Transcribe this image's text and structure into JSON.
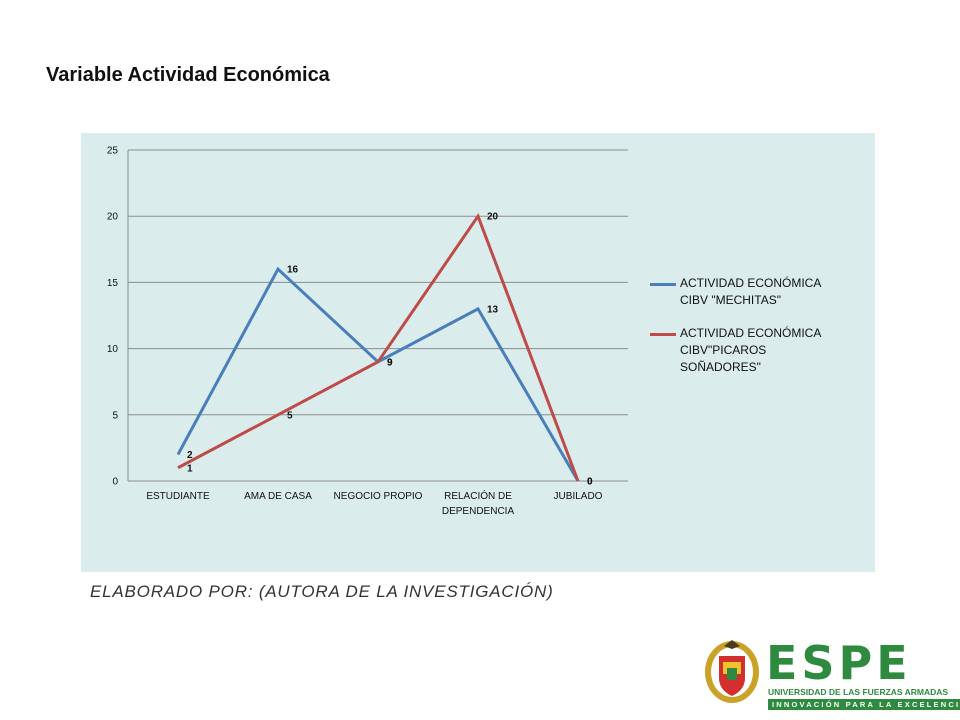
{
  "slide": {
    "title": "Variable Actividad Económica",
    "caption": "ELABORADO POR: (AUTORA DE LA INVESTIGACIÓN)"
  },
  "logo": {
    "word": "ESPE",
    "subtitle": "UNIVERSIDAD DE LAS FUERZAS ARMADAS",
    "tagline": "INNOVACIÓN PARA LA EXCELENCIA",
    "brand_color": "#2d8a3e"
  },
  "chart_data": {
    "type": "line",
    "title": "",
    "xlabel": "",
    "ylabel": "",
    "categories": [
      "ESTUDIANTE",
      "AMA DE CASA",
      "NEGOCIO PROPIO",
      "RELACIÓN DE DEPENDENCIA",
      "JUBILADO"
    ],
    "ylim": [
      0,
      25
    ],
    "yticks": [
      0,
      5,
      10,
      15,
      20,
      25
    ],
    "grid": true,
    "legend_position": "right",
    "background": "#dbecec",
    "series": [
      {
        "name": "ACTIVIDAD ECONÓMICA CIBV \"MECHITAS\"",
        "color": "#4a7ebb",
        "values": [
          2,
          16,
          9,
          13,
          0
        ]
      },
      {
        "name": "ACTIVIDAD ECONÓMICA CIBV\"PICAROS SOÑADORES\"",
        "color": "#be4b48",
        "values": [
          1,
          5,
          9,
          20,
          0
        ]
      }
    ]
  }
}
